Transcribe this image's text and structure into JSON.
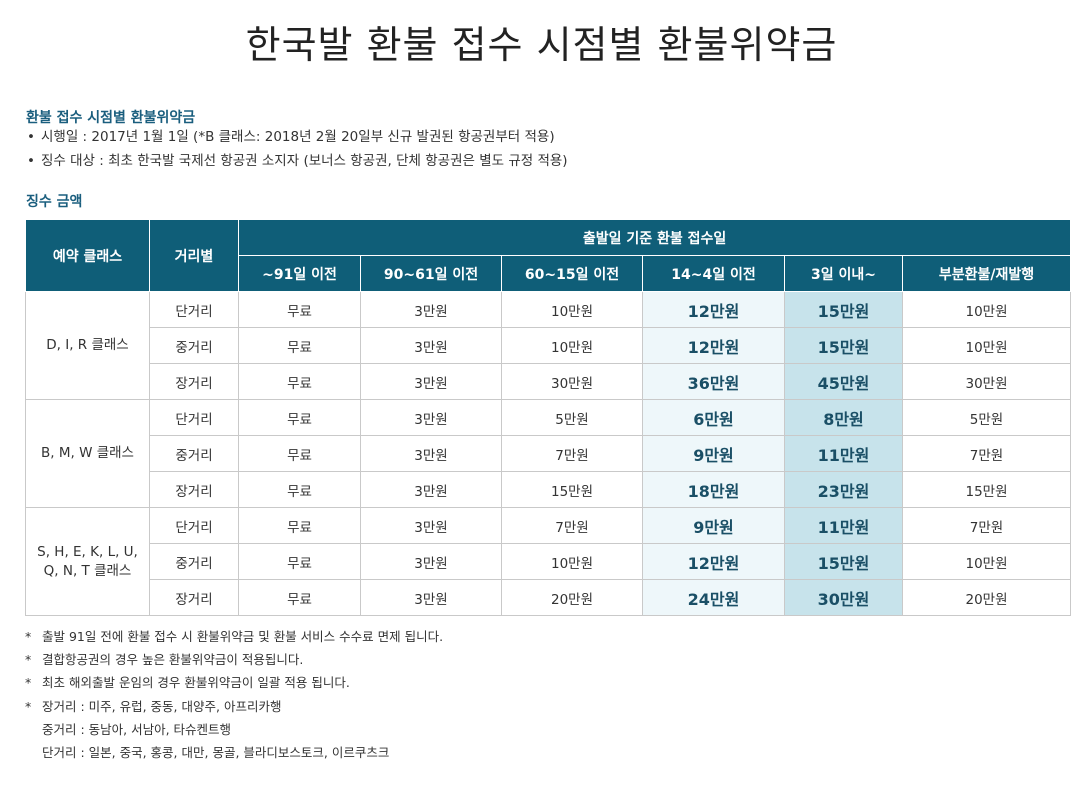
{
  "title": "한국발 환불 접수 시점별 환불위약금",
  "policy": {
    "heading": "환불 접수 시점별 환불위약금",
    "bullet": "•",
    "items": [
      "시행일 : 2017년 1월 1일 (*B 클래스: 2018년 2월 20일부 신규 발권된 항공권부터 적용)",
      "징수 대상 : 최초 한국발 국제선 항공권 소지자 (보너스 항공권, 단체 항공권은 별도 규정 적용)"
    ]
  },
  "fees": {
    "heading": "징수 금액",
    "headers": {
      "class": "예약 클래스",
      "distance": "거리별",
      "group": "출발일 기준 환불 접수일",
      "periods": [
        "~91일 이전",
        "90~61일 이전",
        "60~15일 이전",
        "14~4일 이전",
        "3일 이내~",
        "부분환불/재발행"
      ]
    },
    "groups": [
      {
        "class": "D, I, R 클래스",
        "rows": [
          {
            "distance": "단거리",
            "values": [
              "무료",
              "3만원",
              "10만원",
              "12만원",
              "15만원",
              "10만원"
            ]
          },
          {
            "distance": "중거리",
            "values": [
              "무료",
              "3만원",
              "10만원",
              "12만원",
              "15만원",
              "10만원"
            ]
          },
          {
            "distance": "장거리",
            "values": [
              "무료",
              "3만원",
              "30만원",
              "36만원",
              "45만원",
              "30만원"
            ]
          }
        ]
      },
      {
        "class": "B, M, W 클래스",
        "rows": [
          {
            "distance": "단거리",
            "values": [
              "무료",
              "3만원",
              "5만원",
              "6만원",
              "8만원",
              "5만원"
            ]
          },
          {
            "distance": "중거리",
            "values": [
              "무료",
              "3만원",
              "7만원",
              "9만원",
              "11만원",
              "7만원"
            ]
          },
          {
            "distance": "장거리",
            "values": [
              "무료",
              "3만원",
              "15만원",
              "18만원",
              "23만원",
              "15만원"
            ]
          }
        ]
      },
      {
        "class_line1": "S, H, E, K, L, U,",
        "class_line2": "Q, N, T 클래스",
        "rows": [
          {
            "distance": "단거리",
            "values": [
              "무료",
              "3만원",
              "7만원",
              "9만원",
              "11만원",
              "7만원"
            ]
          },
          {
            "distance": "중거리",
            "values": [
              "무료",
              "3만원",
              "10만원",
              "12만원",
              "15만원",
              "10만원"
            ]
          },
          {
            "distance": "장거리",
            "values": [
              "무료",
              "3만원",
              "20만원",
              "24만원",
              "30만원",
              "20만원"
            ]
          }
        ]
      }
    ]
  },
  "notes": {
    "star": "*",
    "items": [
      "출발 91일 전에 환불 접수 시 환불위약금 및 환불 서비스 수수료 면제 됩니다.",
      "결합항공권의 경우 높은 환불위약금이 적용됩니다.",
      "최초 해외출발 운임의 경우 환불위약금이 일괄 적용 됩니다.",
      "장거리 : 미주, 유럽, 중동, 대양주, 아프리카행"
    ],
    "continuation": [
      "중거리 : 동남아, 서남아, 타슈켄트행",
      "단거리 : 일본, 중국, 홍콩, 대만, 몽골, 블라디보스토크, 이르쿠츠크"
    ]
  },
  "colors": {
    "header_bg": "#0f5e78",
    "heading_text": "#1a5e7e",
    "highlight_light": "#eef7fa",
    "highlight_dark": "#c7e3eb"
  }
}
